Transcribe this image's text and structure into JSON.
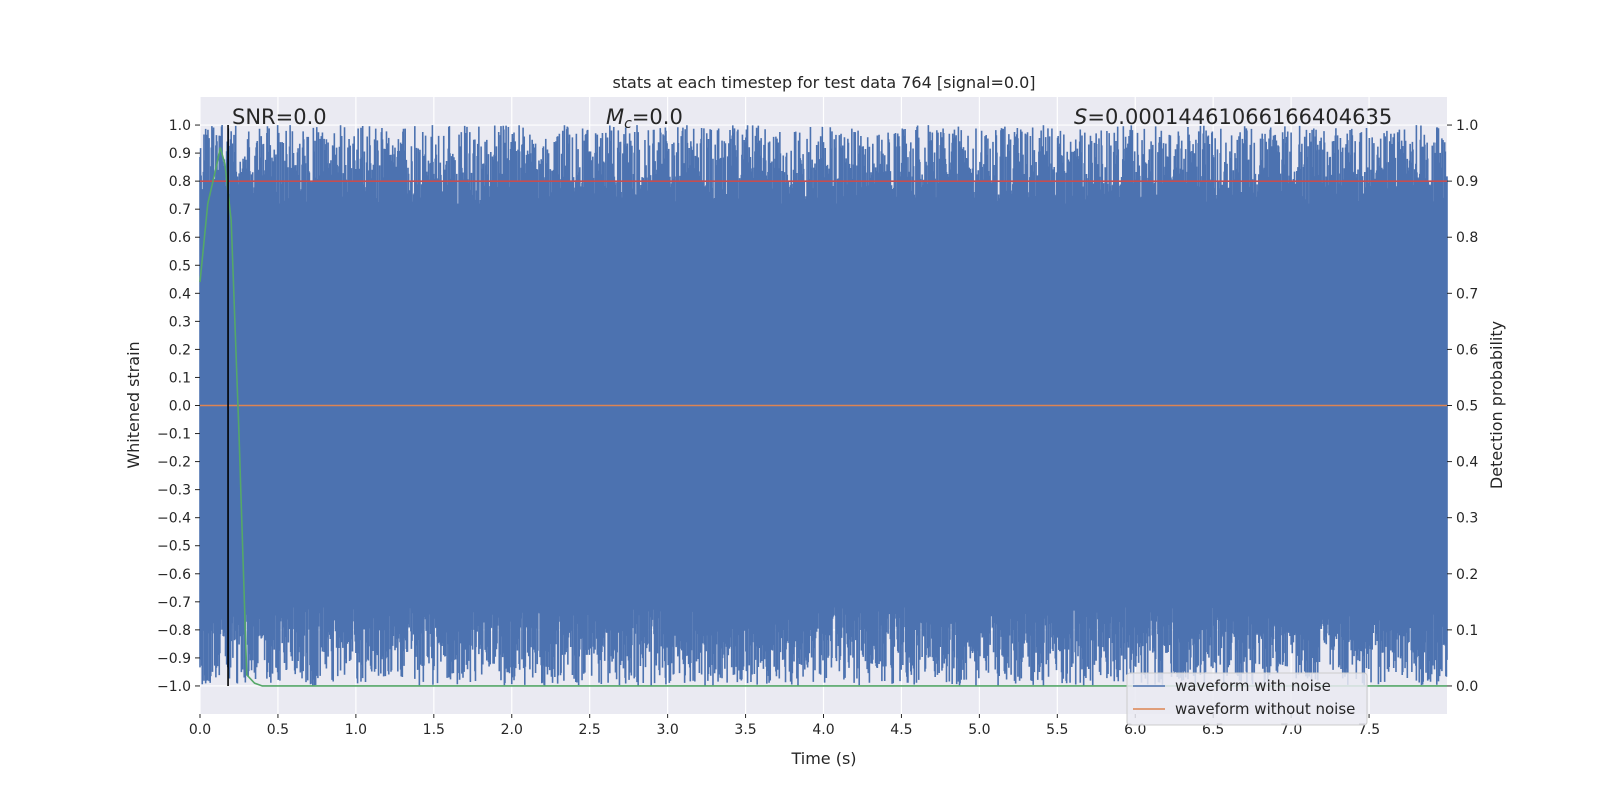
{
  "chart_data": {
    "type": "line",
    "title": "stats at each timestep for test data 764 [signal=0.0]",
    "xlabel": "Time (s)",
    "ylabel_left": "Whitened strain",
    "ylabel_right": "Detection probability",
    "xlim": [
      0.0,
      8.0
    ],
    "ylim_left": [
      -1.1,
      1.1
    ],
    "ylim_right": [
      -0.05,
      1.05
    ],
    "x_ticks": [
      "0.0",
      "0.5",
      "1.0",
      "1.5",
      "2.0",
      "2.5",
      "3.0",
      "3.5",
      "4.0",
      "4.5",
      "5.0",
      "5.5",
      "6.0",
      "6.5",
      "7.0",
      "7.5"
    ],
    "y_ticks_left": [
      "1.0",
      "0.9",
      "0.8",
      "0.7",
      "0.6",
      "0.5",
      "0.4",
      "0.3",
      "0.2",
      "0.1",
      "0.0",
      "−0.1",
      "−0.2",
      "−0.3",
      "−0.4",
      "−0.5",
      "−0.6",
      "−0.7",
      "−0.8",
      "−0.9",
      "−1.0"
    ],
    "y_ticks_right": [
      "1.0",
      "0.9",
      "0.8",
      "0.7",
      "0.6",
      "0.5",
      "0.4",
      "0.3",
      "0.2",
      "0.1",
      "0.0"
    ],
    "grid": true,
    "legend_placement": "lower-right",
    "annotations": {
      "snr": "SNR=0.0",
      "mc_symbol": "M",
      "mc_sub": "c",
      "mc_value": "=0.0",
      "s_symbol": "S",
      "s_value": "=0.00014461066166404635"
    },
    "series": [
      {
        "name": "waveform with noise",
        "axis": "left",
        "color": "#4c72b0",
        "description": "dense noise filling approximately -1.0 to 1.0"
      },
      {
        "name": "waveform without noise",
        "axis": "left",
        "color": "#dd8452",
        "x": [
          0.0,
          8.0
        ],
        "values": [
          0.0,
          0.0
        ]
      },
      {
        "axis": "right",
        "color": "#55a868",
        "x": [
          0.0,
          0.05,
          0.1,
          0.13,
          0.16,
          0.2,
          0.25,
          0.3,
          0.35,
          0.4,
          1.0,
          2.0,
          3.0,
          4.0,
          5.0,
          6.0,
          7.0,
          8.0
        ],
        "values": [
          0.72,
          0.86,
          0.92,
          0.96,
          0.93,
          0.83,
          0.45,
          0.02,
          0.005,
          0.0,
          0.0,
          0.0,
          0.0,
          0.0,
          0.0,
          0.0,
          0.0,
          0.0
        ]
      },
      {
        "axis": "right",
        "color": "#c44e52",
        "x": [
          0.0,
          8.0
        ],
        "values": [
          0.9,
          0.9
        ]
      }
    ],
    "vline": {
      "x": 0.18,
      "color": "#000000"
    }
  }
}
